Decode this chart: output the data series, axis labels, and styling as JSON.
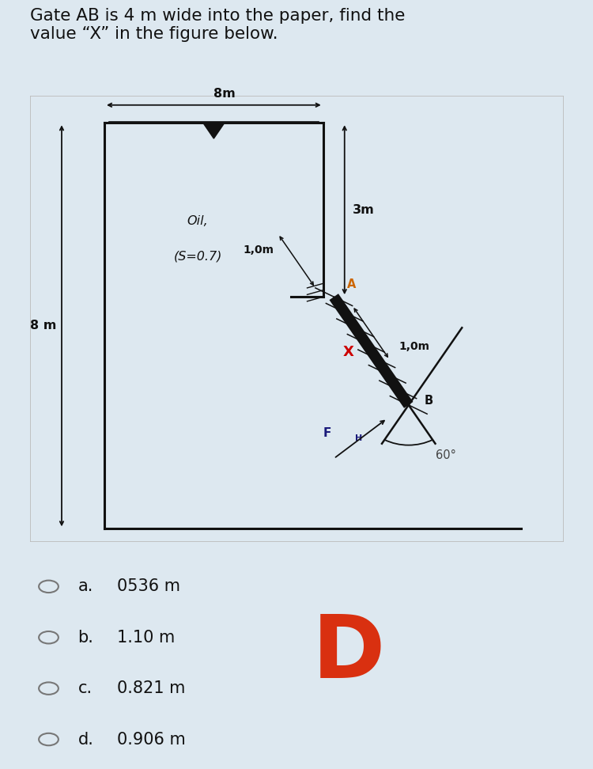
{
  "title": "Gate AB is 4 m wide into the paper, find the\nvalue “X” in the figure below.",
  "title_fontsize": 15.5,
  "bg_color": "#dde8f0",
  "diagram_bg": "#ffffff",
  "options": [
    {
      "label": "a.",
      "value": "0536 m"
    },
    {
      "label": "b.",
      "value": "1.10 m"
    },
    {
      "label": "c.",
      "value": "0.821 m"
    },
    {
      "label": "d.",
      "value": "0.906 m"
    }
  ],
  "answer": "D",
  "answer_color": "#d93010",
  "oil_label_line1": "Oil,",
  "oil_label_line2": "(S=0.7)",
  "dim_8m_horiz": "8m",
  "dim_3m_vert": "3m",
  "dim_8m_vert": "8 m",
  "dim_1om_left": "1,0m",
  "dim_1om_right": "1,0m",
  "label_A": "A",
  "label_B": "B",
  "label_X": "X",
  "label_FH": "F",
  "label_FH_sub": "H",
  "angle_label": "60°",
  "gate_color": "#111111",
  "line_color": "#111111",
  "X_color": "#cc0000",
  "FH_color": "#1a1a7a",
  "A_color": "#cc6600"
}
